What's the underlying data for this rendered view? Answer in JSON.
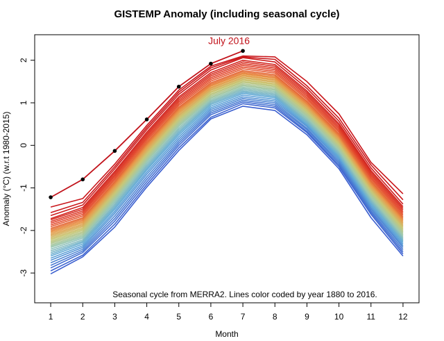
{
  "chart_data": {
    "type": "line",
    "title": "GISTEMP Anomaly (including seasonal cycle)",
    "xlabel": "Month",
    "ylabel": "Anomaly (°C) (w.r.t 1980-2015)",
    "x": [
      1,
      2,
      3,
      4,
      5,
      6,
      7,
      8,
      9,
      10,
      11,
      12
    ],
    "xlim": [
      0.5,
      12.5
    ],
    "ylim": [
      -3.7,
      2.6
    ],
    "xticks": [
      1,
      2,
      3,
      4,
      5,
      6,
      7,
      8,
      9,
      10,
      11,
      12
    ],
    "yticks": [
      -3,
      -2,
      -1,
      0,
      1,
      2
    ],
    "grid": false,
    "legend": "none",
    "annotation": "Seasonal cycle from MERRA2. Lines color coded by year 1880 to 2016.",
    "color_scale": [
      "#3b5fcf",
      "#5fa8d8",
      "#9ec9b0",
      "#c8c776",
      "#e89a4a",
      "#e3452a",
      "#c8141a"
    ],
    "year_range": [
      1880,
      2016
    ],
    "highlight": {
      "label": "July 2016",
      "color": "#c1121a",
      "values": [
        -1.22,
        -0.8,
        -0.13,
        0.61,
        1.38,
        1.92,
        2.22
      ]
    },
    "series": [
      {
        "year": 1880,
        "values": [
          -3.02,
          -2.62,
          -1.92,
          -0.98,
          -0.12,
          0.62,
          0.92,
          0.82,
          0.25,
          -0.55,
          -1.7,
          -2.6
        ]
      },
      {
        "year": 1882,
        "values": [
          -2.95,
          -2.58,
          -1.85,
          -0.92,
          -0.06,
          0.66,
          0.98,
          0.88,
          0.3,
          -0.5,
          -1.62,
          -2.55
        ]
      },
      {
        "year": 1885,
        "values": [
          -2.88,
          -2.52,
          -1.78,
          -0.86,
          0.0,
          0.72,
          1.02,
          0.92,
          0.33,
          -0.46,
          -1.58,
          -2.5
        ]
      },
      {
        "year": 1888,
        "values": [
          -2.82,
          -2.48,
          -1.72,
          -0.8,
          0.05,
          0.76,
          1.06,
          0.96,
          0.37,
          -0.42,
          -1.54,
          -2.45
        ]
      },
      {
        "year": 1892,
        "values": [
          -2.76,
          -2.44,
          -1.66,
          -0.74,
          0.1,
          0.8,
          1.1,
          1.0,
          0.4,
          -0.38,
          -1.5,
          -2.4
        ]
      },
      {
        "year": 1896,
        "values": [
          -2.7,
          -2.4,
          -1.6,
          -0.68,
          0.15,
          0.84,
          1.14,
          1.04,
          0.44,
          -0.34,
          -1.46,
          -2.36
        ]
      },
      {
        "year": 1900,
        "values": [
          -2.65,
          -2.36,
          -1.55,
          -0.63,
          0.2,
          0.88,
          1.18,
          1.08,
          0.47,
          -0.3,
          -1.42,
          -2.32
        ]
      },
      {
        "year": 1904,
        "values": [
          -2.6,
          -2.32,
          -1.5,
          -0.58,
          0.25,
          0.92,
          1.22,
          1.12,
          0.5,
          -0.27,
          -1.38,
          -2.28
        ]
      },
      {
        "year": 1908,
        "values": [
          -2.56,
          -2.28,
          -1.46,
          -0.54,
          0.29,
          0.96,
          1.25,
          1.15,
          0.53,
          -0.24,
          -1.35,
          -2.25
        ]
      },
      {
        "year": 1912,
        "values": [
          -2.52,
          -2.25,
          -1.42,
          -0.5,
          0.33,
          0.99,
          1.28,
          1.18,
          0.56,
          -0.21,
          -1.32,
          -2.22
        ]
      },
      {
        "year": 1916,
        "values": [
          -2.48,
          -2.22,
          -1.38,
          -0.46,
          0.37,
          1.02,
          1.31,
          1.21,
          0.59,
          -0.18,
          -1.29,
          -2.19
        ]
      },
      {
        "year": 1920,
        "values": [
          -2.44,
          -2.18,
          -1.34,
          -0.42,
          0.41,
          1.05,
          1.34,
          1.24,
          0.62,
          -0.15,
          -1.26,
          -2.16
        ]
      },
      {
        "year": 1924,
        "values": [
          -2.4,
          -2.15,
          -1.3,
          -0.38,
          0.45,
          1.08,
          1.37,
          1.27,
          0.65,
          -0.12,
          -1.23,
          -2.13
        ]
      },
      {
        "year": 1928,
        "values": [
          -2.37,
          -2.12,
          -1.27,
          -0.35,
          0.48,
          1.11,
          1.4,
          1.3,
          0.68,
          -0.09,
          -1.2,
          -2.1
        ]
      },
      {
        "year": 1932,
        "values": [
          -2.34,
          -2.09,
          -1.24,
          -0.32,
          0.51,
          1.13,
          1.42,
          1.32,
          0.7,
          -0.07,
          -1.17,
          -2.07
        ]
      },
      {
        "year": 1936,
        "values": [
          -2.31,
          -2.06,
          -1.21,
          -0.29,
          0.54,
          1.16,
          1.45,
          1.35,
          0.73,
          -0.04,
          -1.14,
          -2.04
        ]
      },
      {
        "year": 1940,
        "values": [
          -2.28,
          -2.03,
          -1.18,
          -0.26,
          0.57,
          1.19,
          1.48,
          1.38,
          0.76,
          -0.01,
          -1.11,
          -2.01
        ]
      },
      {
        "year": 1944,
        "values": [
          -2.25,
          -2.0,
          -1.15,
          -0.23,
          0.6,
          1.21,
          1.5,
          1.4,
          0.78,
          0.01,
          -1.09,
          -1.98
        ]
      },
      {
        "year": 1948,
        "values": [
          -2.22,
          -1.97,
          -1.12,
          -0.2,
          0.63,
          1.24,
          1.53,
          1.43,
          0.81,
          0.04,
          -1.06,
          -1.95
        ]
      },
      {
        "year": 1952,
        "values": [
          -2.19,
          -1.94,
          -1.09,
          -0.17,
          0.66,
          1.26,
          1.55,
          1.45,
          0.83,
          0.06,
          -1.04,
          -1.92
        ]
      },
      {
        "year": 1956,
        "values": [
          -2.16,
          -1.91,
          -1.06,
          -0.14,
          0.69,
          1.29,
          1.58,
          1.48,
          0.86,
          0.09,
          -1.01,
          -1.89
        ]
      },
      {
        "year": 1960,
        "values": [
          -2.13,
          -1.88,
          -1.03,
          -0.11,
          0.72,
          1.31,
          1.6,
          1.5,
          0.88,
          0.11,
          -0.99,
          -1.86
        ]
      },
      {
        "year": 1964,
        "values": [
          -2.1,
          -1.85,
          -1.0,
          -0.08,
          0.75,
          1.34,
          1.63,
          1.53,
          0.91,
          0.14,
          -0.96,
          -1.83
        ]
      },
      {
        "year": 1968,
        "values": [
          -2.07,
          -1.82,
          -0.97,
          -0.05,
          0.78,
          1.36,
          1.65,
          1.55,
          0.93,
          0.16,
          -0.94,
          -1.8
        ]
      },
      {
        "year": 1972,
        "values": [
          -2.04,
          -1.79,
          -0.94,
          -0.02,
          0.81,
          1.39,
          1.68,
          1.58,
          0.96,
          0.19,
          -0.91,
          -1.77
        ]
      },
      {
        "year": 1976,
        "values": [
          -2.01,
          -1.76,
          -0.91,
          0.01,
          0.84,
          1.41,
          1.7,
          1.6,
          0.98,
          0.21,
          -0.89,
          -1.74
        ]
      },
      {
        "year": 1980,
        "values": [
          -1.98,
          -1.73,
          -0.88,
          0.04,
          0.87,
          1.44,
          1.73,
          1.63,
          1.01,
          0.24,
          -0.86,
          -1.71
        ]
      },
      {
        "year": 1984,
        "values": [
          -1.95,
          -1.7,
          -0.85,
          0.07,
          0.9,
          1.47,
          1.76,
          1.66,
          1.04,
          0.27,
          -0.83,
          -1.68
        ]
      },
      {
        "year": 1988,
        "values": [
          -1.91,
          -1.66,
          -0.81,
          0.11,
          0.94,
          1.51,
          1.8,
          1.7,
          1.08,
          0.31,
          -0.79,
          -1.64
        ]
      },
      {
        "year": 1992,
        "values": [
          -1.87,
          -1.62,
          -0.77,
          0.15,
          0.98,
          1.55,
          1.84,
          1.74,
          1.12,
          0.35,
          -0.75,
          -1.6
        ]
      },
      {
        "year": 1996,
        "values": [
          -1.83,
          -1.58,
          -0.73,
          0.19,
          1.02,
          1.59,
          1.88,
          1.78,
          1.16,
          0.39,
          -0.71,
          -1.56
        ]
      },
      {
        "year": 2000,
        "values": [
          -1.79,
          -1.54,
          -0.69,
          0.23,
          1.06,
          1.63,
          1.92,
          1.82,
          1.2,
          0.43,
          -0.67,
          -1.52
        ]
      },
      {
        "year": 2004,
        "values": [
          -1.75,
          -1.5,
          -0.65,
          0.27,
          1.1,
          1.67,
          1.96,
          1.86,
          1.24,
          0.47,
          -0.63,
          -1.48
        ]
      },
      {
        "year": 2008,
        "values": [
          -1.72,
          -1.46,
          -0.61,
          0.31,
          1.14,
          1.71,
          2.0,
          1.9,
          1.28,
          0.51,
          -0.59,
          -1.44
        ]
      },
      {
        "year": 2012,
        "values": [
          -1.65,
          -1.4,
          -0.55,
          0.37,
          1.2,
          1.77,
          2.06,
          1.96,
          1.34,
          0.57,
          -0.53,
          -1.38
        ]
      },
      {
        "year": 2014,
        "values": [
          -1.58,
          -1.34,
          -0.5,
          0.42,
          1.25,
          1.82,
          2.08,
          2.02,
          1.4,
          0.64,
          -0.46,
          -1.28
        ]
      },
      {
        "year": 2015,
        "values": [
          -1.45,
          -1.25,
          -0.44,
          0.47,
          1.3,
          1.86,
          2.1,
          2.08,
          1.5,
          0.74,
          -0.4,
          -1.14
        ]
      }
    ]
  }
}
